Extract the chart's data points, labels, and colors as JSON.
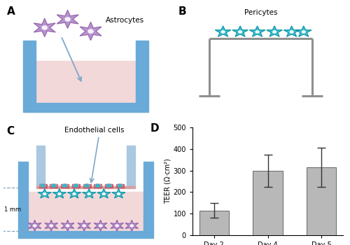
{
  "bar_values": [
    115,
    300,
    315
  ],
  "bar_errors": [
    35,
    75,
    90
  ],
  "bar_labels": [
    "Day 2",
    "Day 4",
    "Day 5"
  ],
  "bar_color": "#b8b8b8",
  "bar_edge_color": "#666666",
  "ylabel": "TEER (Ω·cm²)",
  "ylim": [
    0,
    500
  ],
  "yticks": [
    0,
    100,
    200,
    300,
    400,
    500
  ],
  "panel_A_label": "A",
  "panel_B_label": "B",
  "panel_C_label": "C",
  "panel_D_label": "D",
  "astrocyte_color": "#b088c8",
  "astrocyte_edge": "#9060a8",
  "pericyte_color": "#30b8c8",
  "pericyte_edge": "#1090a0",
  "endothelial_color_dark": "#c85060",
  "endothelial_color_light": "#e090a0",
  "well_blue": "#6aaad8",
  "liquid_pink": "#f2d8d8",
  "insert_blue": "#aac8e0",
  "bg_color": "#ffffff",
  "arrow_color": "#80a8c8",
  "dashed_color": "#80a8c8",
  "transwell_gray": "#909090"
}
